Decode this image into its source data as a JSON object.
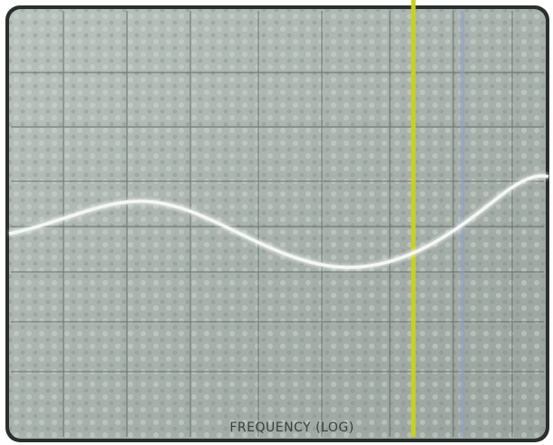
{
  "screen": {
    "xlabel": "FREQUENCY (LOG)"
  }
}
